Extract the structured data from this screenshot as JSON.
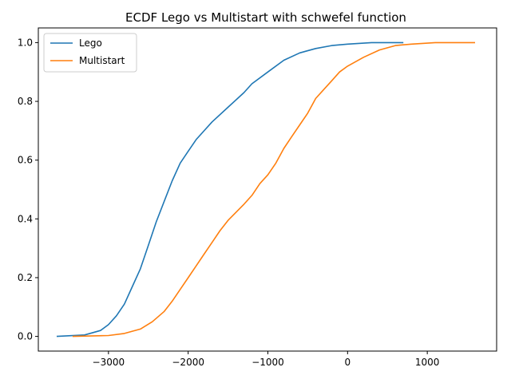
{
  "chart_data": {
    "type": "line",
    "title": "ECDF Lego vs Multistart with schwefel function",
    "xlabel": "",
    "ylabel": "",
    "xlim": [
      -3880,
      1870
    ],
    "ylim": [
      -0.05,
      1.05
    ],
    "x_ticks": [
      -3000,
      -2000,
      -1000,
      0,
      1000
    ],
    "x_tick_labels": [
      "−3000",
      "−2000",
      "−1000",
      "0",
      "1000"
    ],
    "y_ticks": [
      0.0,
      0.2,
      0.4,
      0.6,
      0.8,
      1.0
    ],
    "y_tick_labels": [
      "0.0",
      "0.2",
      "0.4",
      "0.6",
      "0.8",
      "1.0"
    ],
    "grid": false,
    "legend_position": "upper-left",
    "series": [
      {
        "name": "Lego",
        "color": "#1f77b4",
        "points": [
          [
            -3650,
            0.0
          ],
          [
            -3300,
            0.005
          ],
          [
            -3100,
            0.02
          ],
          [
            -3000,
            0.04
          ],
          [
            -2900,
            0.07
          ],
          [
            -2800,
            0.11
          ],
          [
            -2700,
            0.17
          ],
          [
            -2600,
            0.23
          ],
          [
            -2500,
            0.31
          ],
          [
            -2400,
            0.39
          ],
          [
            -2300,
            0.46
          ],
          [
            -2200,
            0.53
          ],
          [
            -2100,
            0.59
          ],
          [
            -2000,
            0.63
          ],
          [
            -1900,
            0.67
          ],
          [
            -1800,
            0.7
          ],
          [
            -1700,
            0.73
          ],
          [
            -1500,
            0.78
          ],
          [
            -1300,
            0.83
          ],
          [
            -1200,
            0.86
          ],
          [
            -1000,
            0.9
          ],
          [
            -800,
            0.94
          ],
          [
            -600,
            0.965
          ],
          [
            -400,
            0.98
          ],
          [
            -200,
            0.99
          ],
          [
            0,
            0.995
          ],
          [
            300,
            1.0
          ],
          [
            700,
            1.0
          ]
        ]
      },
      {
        "name": "Multistart",
        "color": "#ff7f0e",
        "points": [
          [
            -3450,
            0.0
          ],
          [
            -3000,
            0.003
          ],
          [
            -2800,
            0.01
          ],
          [
            -2600,
            0.025
          ],
          [
            -2450,
            0.05
          ],
          [
            -2300,
            0.085
          ],
          [
            -2200,
            0.12
          ],
          [
            -2100,
            0.16
          ],
          [
            -2000,
            0.2
          ],
          [
            -1900,
            0.24
          ],
          [
            -1800,
            0.28
          ],
          [
            -1700,
            0.32
          ],
          [
            -1600,
            0.36
          ],
          [
            -1500,
            0.395
          ],
          [
            -1300,
            0.45
          ],
          [
            -1200,
            0.48
          ],
          [
            -1100,
            0.52
          ],
          [
            -1000,
            0.55
          ],
          [
            -900,
            0.59
          ],
          [
            -800,
            0.64
          ],
          [
            -700,
            0.68
          ],
          [
            -600,
            0.72
          ],
          [
            -500,
            0.76
          ],
          [
            -400,
            0.81
          ],
          [
            -300,
            0.84
          ],
          [
            -200,
            0.87
          ],
          [
            -100,
            0.9
          ],
          [
            0,
            0.92
          ],
          [
            200,
            0.95
          ],
          [
            400,
            0.975
          ],
          [
            600,
            0.99
          ],
          [
            800,
            0.995
          ],
          [
            1100,
            1.0
          ],
          [
            1600,
            1.0
          ]
        ]
      }
    ]
  }
}
